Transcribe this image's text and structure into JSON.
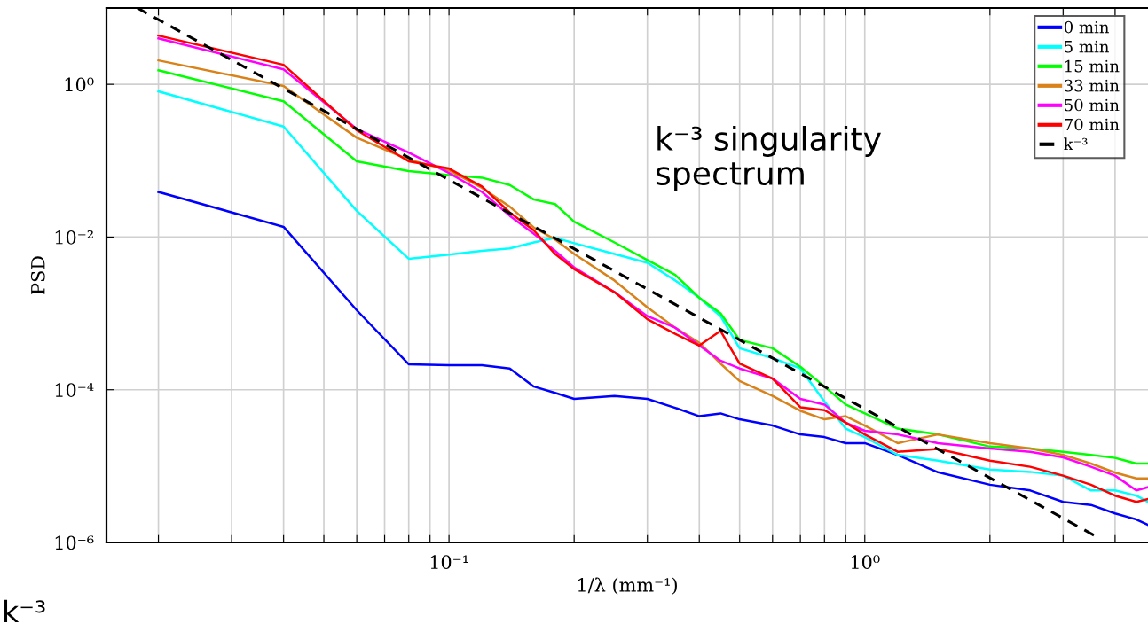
{
  "chart_data": {
    "type": "line",
    "xlabel": "1/λ (mm⁻¹)",
    "ylabel": "PSD",
    "log": "xy",
    "grid": true,
    "legend": "top right",
    "line_style": "solid",
    "xlim": [
      0.015,
      4.8
    ],
    "ylim": [
      1e-06,
      10
    ],
    "xticks": [
      {
        "value": 0.02,
        "label": null
      },
      {
        "value": 0.03,
        "label": null
      },
      {
        "value": 0.04,
        "label": null
      },
      {
        "value": 0.05,
        "label": null
      },
      {
        "value": 0.06,
        "label": null
      },
      {
        "value": 0.07,
        "label": null
      },
      {
        "value": 0.08,
        "label": null
      },
      {
        "value": 0.09,
        "label": null
      },
      {
        "value": 0.1,
        "label": "10⁻¹"
      },
      {
        "value": 0.2,
        "label": null
      },
      {
        "value": 0.3,
        "label": null
      },
      {
        "value": 0.4,
        "label": null
      },
      {
        "value": 0.5,
        "label": null
      },
      {
        "value": 0.6,
        "label": null
      },
      {
        "value": 0.7,
        "label": null
      },
      {
        "value": 0.8,
        "label": null
      },
      {
        "value": 0.9,
        "label": null
      },
      {
        "value": 1,
        "label": "10⁰"
      },
      {
        "value": 2,
        "label": null
      },
      {
        "value": 3,
        "label": null
      },
      {
        "value": 4,
        "label": null
      }
    ],
    "yticks": [
      {
        "value": 1e-06,
        "label": "10⁻⁶"
      },
      {
        "value": 0.0001,
        "label": "10⁻⁴"
      },
      {
        "value": 0.01,
        "label": "10⁻²"
      },
      {
        "value": 1,
        "label": "10⁰"
      }
    ],
    "x": [
      0.02,
      0.04,
      0.06,
      0.08,
      0.1,
      0.12,
      0.14,
      0.16,
      0.18,
      0.2,
      0.25,
      0.3,
      0.35,
      0.4,
      0.45,
      0.5,
      0.6,
      0.7,
      0.8,
      0.9,
      1.0,
      1.2,
      1.5,
      2,
      2.5,
      3,
      3.5,
      4,
      4.5,
      4.8
    ],
    "series": [
      {
        "name": "0 min",
        "color": "#0000ff",
        "values": [
          0.039,
          0.0136,
          0.0011,
          0.000216,
          0.00021,
          0.00021,
          0.00019,
          0.00011,
          9.1e-05,
          7.6e-05,
          8.3e-05,
          7.6e-05,
          5.8e-05,
          4.5e-05,
          4.9e-05,
          4.1e-05,
          3.4e-05,
          2.6e-05,
          2.4e-05,
          2e-05,
          2e-05,
          1.4e-05,
          8.3e-06,
          5.7e-06,
          4.8e-06,
          3.4e-06,
          3.1e-06,
          2.4e-06,
          2e-06,
          1.7e-06
        ]
      },
      {
        "name": "5 min",
        "color": "#00ffff",
        "values": [
          0.81,
          0.28,
          0.022,
          0.0052,
          0.0059,
          0.0066,
          0.0071,
          0.0085,
          0.0098,
          0.0083,
          0.006,
          0.0046,
          0.0027,
          0.0016,
          0.00092,
          0.00035,
          0.00026,
          0.00019,
          7e-05,
          3.1e-05,
          2.4e-05,
          1.4e-05,
          1.18e-05,
          9e-06,
          8.4e-06,
          7.5e-06,
          4.8e-06,
          4.8e-06,
          4.1e-06,
          3.4e-06
        ]
      },
      {
        "name": "15 min",
        "color": "#00ff00",
        "values": [
          1.53,
          0.6,
          0.098,
          0.073,
          0.065,
          0.06,
          0.048,
          0.031,
          0.027,
          0.0159,
          0.0085,
          0.005,
          0.0032,
          0.0016,
          0.001,
          0.00045,
          0.00035,
          0.0002,
          0.00011,
          6.4e-05,
          4.9e-05,
          3.1e-05,
          2.6e-05,
          1.8e-05,
          1.7e-05,
          1.54e-05,
          1.4e-05,
          1.28e-05,
          1.08e-05,
          1.08e-05
        ]
      },
      {
        "name": "33 min",
        "color": "#d9821a",
        "values": [
          2.06,
          0.95,
          0.2,
          0.103,
          0.075,
          0.044,
          0.025,
          0.0133,
          0.0093,
          0.006,
          0.0027,
          0.0012,
          0.00065,
          0.00041,
          0.00022,
          0.00013,
          8.3e-05,
          5.3e-05,
          4.1e-05,
          4.5e-05,
          3.4e-05,
          2e-05,
          2.6e-05,
          2e-05,
          1.7e-05,
          1.4e-05,
          1.08e-05,
          8.2e-06,
          6.9e-06,
          6.9e-06
        ]
      },
      {
        "name": "50 min",
        "color": "#ff00ff",
        "values": [
          4.0,
          1.57,
          0.26,
          0.128,
          0.069,
          0.039,
          0.019,
          0.011,
          0.0066,
          0.004,
          0.0019,
          0.00092,
          0.00065,
          0.00038,
          0.00024,
          0.00019,
          0.00014,
          7.6e-05,
          6.4e-05,
          3.7e-05,
          2.9e-05,
          2.6e-05,
          2e-05,
          1.7e-05,
          1.54e-05,
          1.3e-05,
          9.8e-06,
          7.5e-06,
          4.8e-06,
          5.3e-06
        ]
      },
      {
        "name": "70 min",
        "color": "#ff0000",
        "values": [
          4.35,
          1.8,
          0.25,
          0.098,
          0.079,
          0.046,
          0.021,
          0.0122,
          0.006,
          0.0038,
          0.0019,
          0.00084,
          0.00054,
          0.00038,
          0.00059,
          0.00022,
          0.00014,
          5.9e-05,
          5.4e-05,
          3.7e-05,
          2.6e-05,
          1.54e-05,
          1.68e-05,
          1.18e-05,
          9.8e-06,
          7.5e-06,
          5.7e-06,
          4.1e-06,
          3.4e-06,
          3.7e-06
        ]
      },
      {
        "name": "k⁻³",
        "color": "#000000",
        "type": "line",
        "line_style": "dashed",
        "x": [
          0.0178,
          3.6
        ],
        "values": [
          10,
          1.2e-06
        ]
      }
    ],
    "annotations": [
      "k⁻³ singularity\nspectrum",
      "k⁻³"
    ]
  }
}
